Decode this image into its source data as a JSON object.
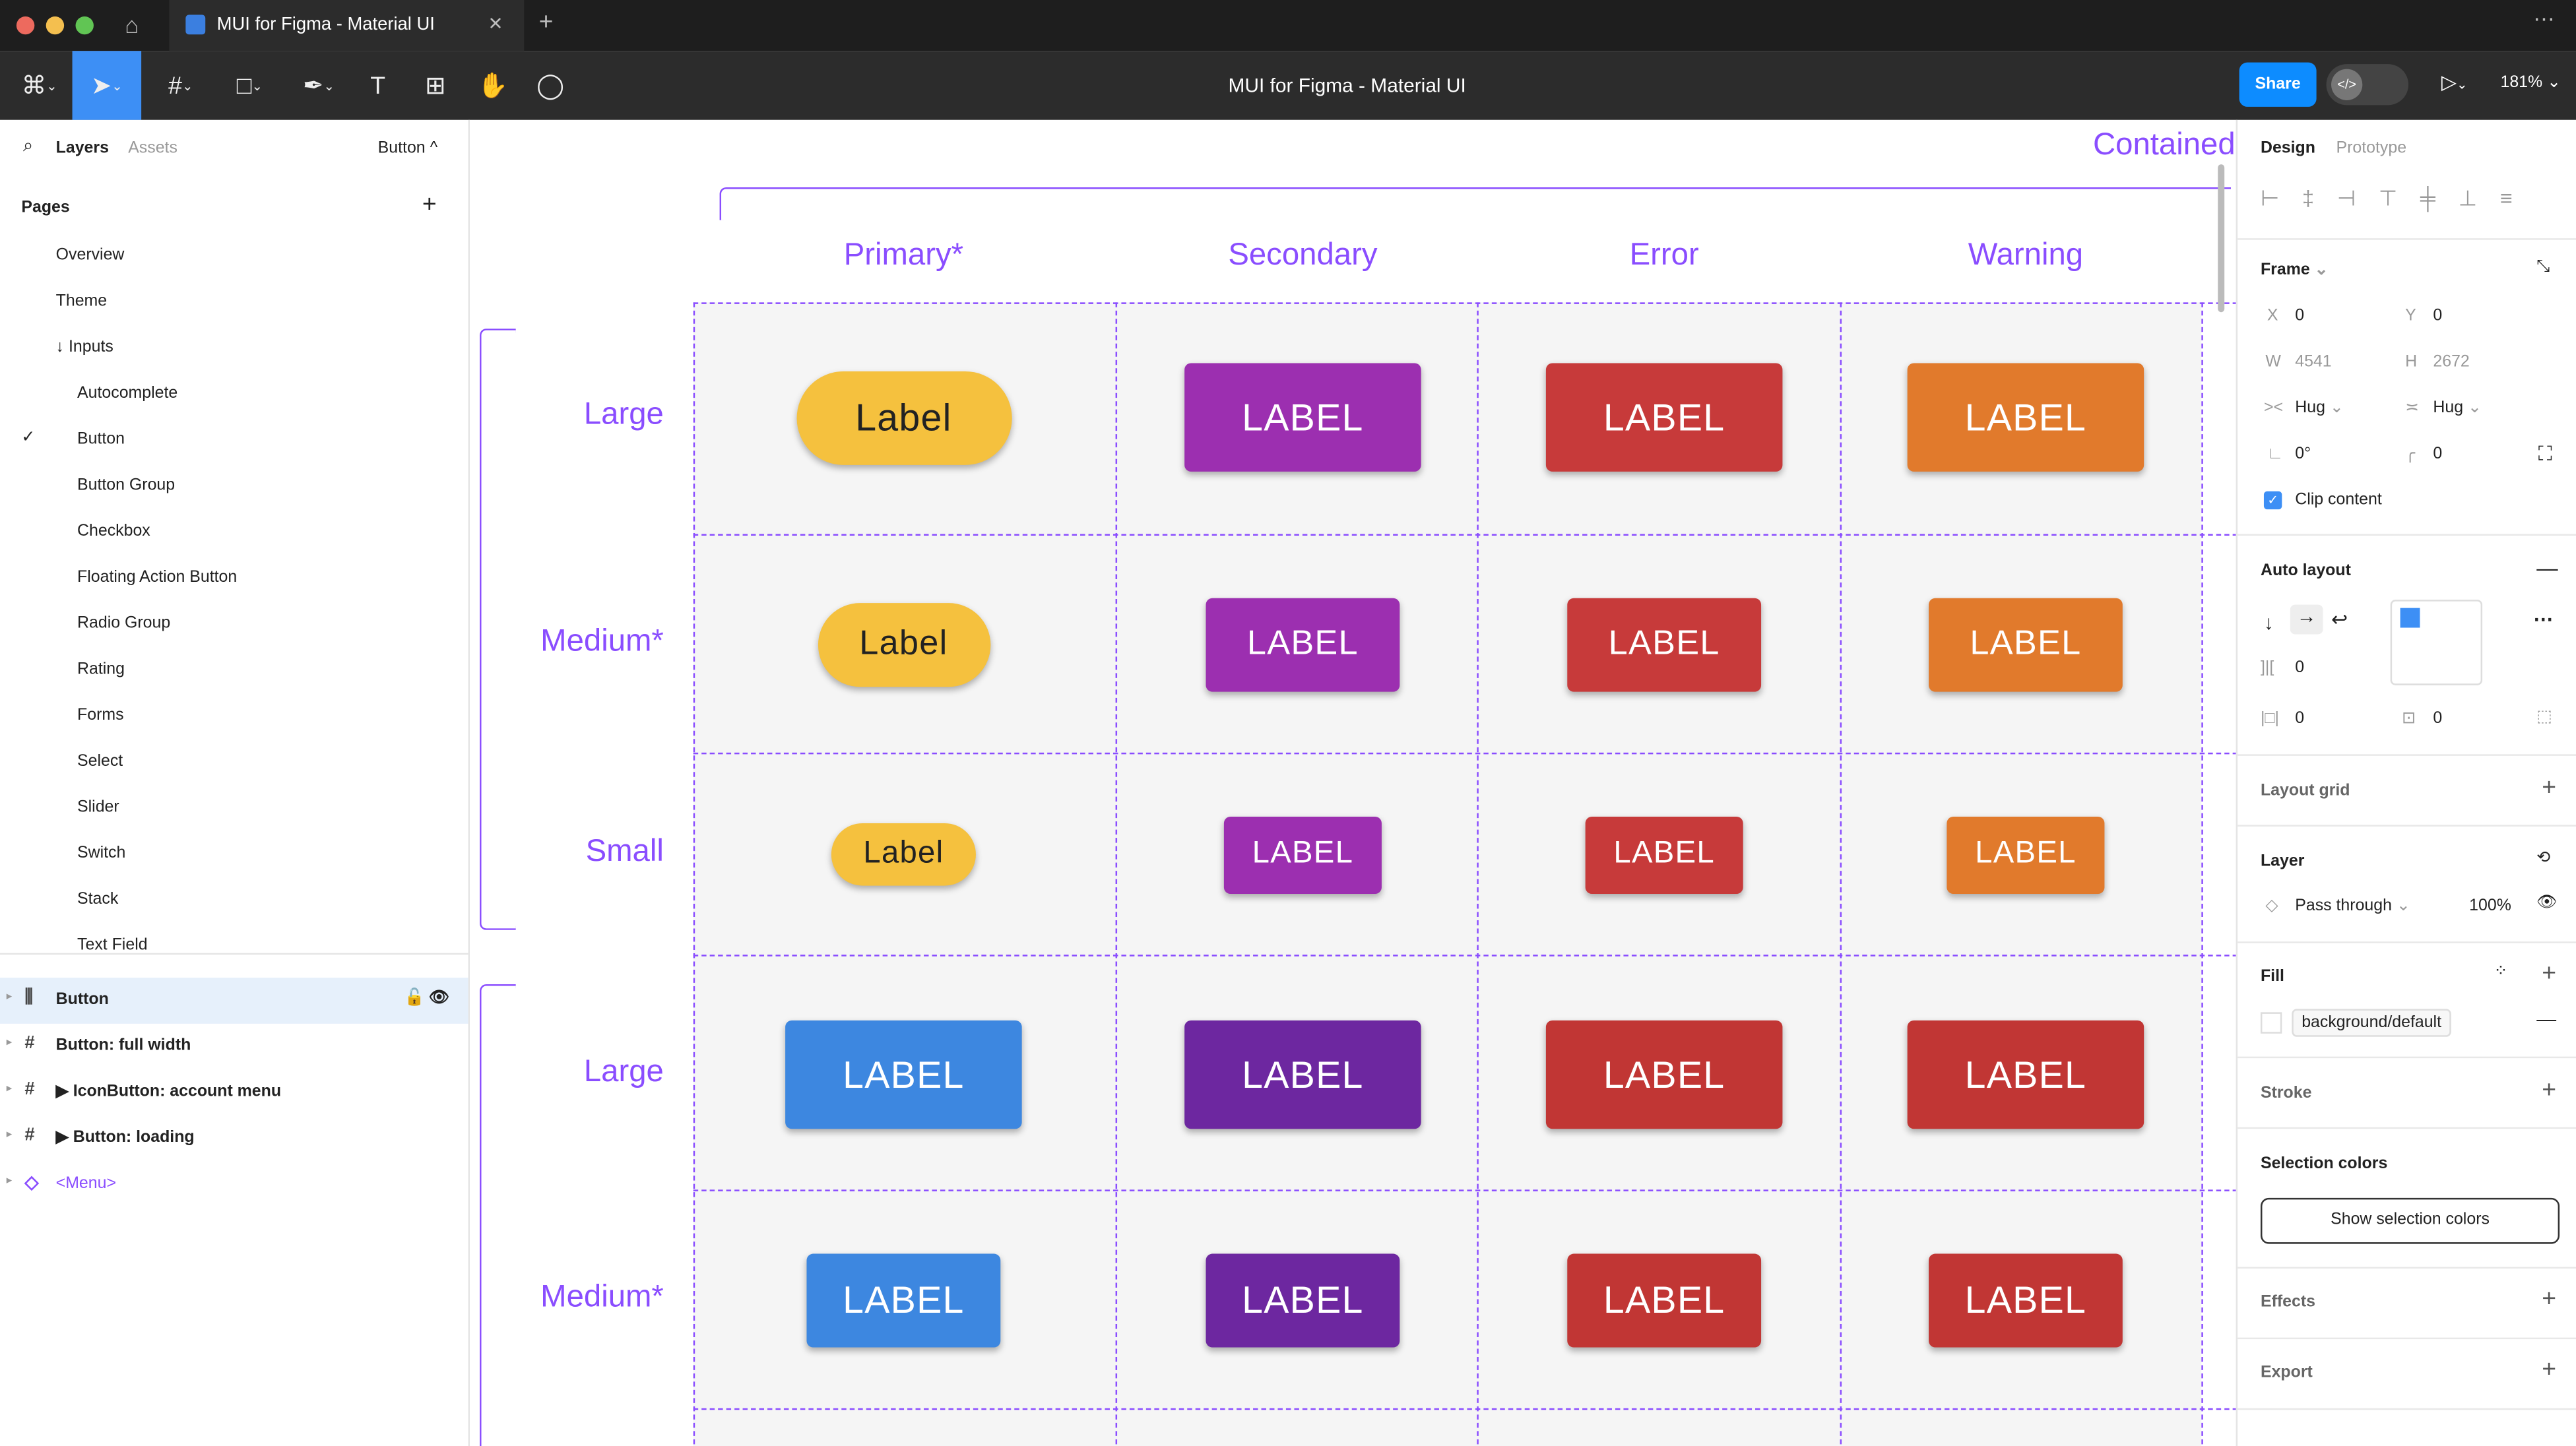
{
  "window": {
    "tab_title": "MUI for Figma - Material UI",
    "doc_title": "MUI for Figma - Material UI",
    "share": "Share",
    "zoom": "181%"
  },
  "icons": [
    "figma-menu-icon",
    "move-tool-icon",
    "frame-tool-icon",
    "rectangle-tool-icon",
    "pen-tool-icon",
    "text-tool-icon",
    "resources-icon",
    "hand-tool-icon",
    "comment-icon",
    "play-icon",
    "dev-mode-icon"
  ],
  "left": {
    "tabs": {
      "layers": "Layers",
      "assets": "Assets",
      "current": "Button"
    },
    "pages_title": "Pages",
    "pages": [
      {
        "label": "Overview",
        "indent": 0
      },
      {
        "label": "Theme",
        "indent": 0
      },
      {
        "label": "↓ Inputs",
        "indent": 0
      },
      {
        "label": "Autocomplete",
        "indent": 1
      },
      {
        "label": "Button",
        "indent": 1,
        "selected": true
      },
      {
        "label": "Button Group",
        "indent": 1
      },
      {
        "label": "Checkbox",
        "indent": 1
      },
      {
        "label": "Floating Action Button",
        "indent": 1
      },
      {
        "label": "Radio Group",
        "indent": 1
      },
      {
        "label": "Rating",
        "indent": 1
      },
      {
        "label": "Forms",
        "indent": 1
      },
      {
        "label": "Select",
        "indent": 1
      },
      {
        "label": "Slider",
        "indent": 1
      },
      {
        "label": "Switch",
        "indent": 1
      },
      {
        "label": "Stack",
        "indent": 1
      },
      {
        "label": "Text Field",
        "indent": 1
      }
    ],
    "layers": [
      {
        "label": "Button",
        "icon": "auto-layout-icon",
        "selected": true
      },
      {
        "label": "Button: full width",
        "icon": "frame-icon"
      },
      {
        "label": "▶ IconButton: account menu",
        "icon": "frame-icon"
      },
      {
        "label": "▶ Button: loading",
        "icon": "frame-icon"
      },
      {
        "label": "<Menu>",
        "icon": "component-icon",
        "purple": true
      }
    ]
  },
  "canvas": {
    "frame_title": "Contained",
    "columns": [
      "Primary*",
      "Secondary",
      "Error",
      "Warning"
    ],
    "rows": [
      "Large",
      "Medium*",
      "Small",
      "Large",
      "Medium*"
    ],
    "buttons": [
      [
        "Label",
        "LABEL",
        "LABEL",
        "LABEL"
      ],
      [
        "Label",
        "LABEL",
        "LABEL",
        "LABEL"
      ],
      [
        "Label",
        "LABEL",
        "LABEL",
        "LABEL"
      ],
      [
        "LABEL",
        "LABEL",
        "LABEL",
        "LABEL"
      ],
      [
        "LABEL",
        "LABEL",
        "LABEL",
        "LABEL"
      ]
    ],
    "colors": [
      [
        "#f5c13e",
        "#9c2fb0",
        "#c73a3a",
        "#e17a2c"
      ],
      [
        "#f5c13e",
        "#9c2fb0",
        "#c73a3a",
        "#e17a2c"
      ],
      [
        "#f5c13e",
        "#9c2fb0",
        "#c73a3a",
        "#e17a2c"
      ],
      [
        "#3d87e0",
        "#6d27a0",
        "#c13634",
        "#c13634"
      ],
      [
        "#3d87e0",
        "#6d27a0",
        "#c13634",
        "#c13634"
      ]
    ],
    "accent": "#8a4dff"
  },
  "right": {
    "tabs": {
      "design": "Design",
      "prototype": "Prototype"
    },
    "frame": {
      "title": "Frame",
      "x_label": "X",
      "x": "0",
      "y_label": "Y",
      "y": "0",
      "w_label": "W",
      "w": "4541",
      "h_label": "H",
      "h": "2672",
      "wmode": "Hug",
      "hmode": "Hug",
      "rotation": "0°",
      "radius": "0",
      "clip": "Clip content"
    },
    "auto_layout": {
      "title": "Auto layout",
      "gap": "0",
      "pad_h": "0",
      "pad_v": "0"
    },
    "layout_grid": "Layout grid",
    "layer": {
      "title": "Layer",
      "blend": "Pass through",
      "opacity": "100%"
    },
    "fill": {
      "title": "Fill",
      "style": "background/default"
    },
    "stroke": "Stroke",
    "selection_colors": {
      "title": "Selection colors",
      "button": "Show selection colors"
    },
    "effects": "Effects",
    "export": "Export"
  }
}
